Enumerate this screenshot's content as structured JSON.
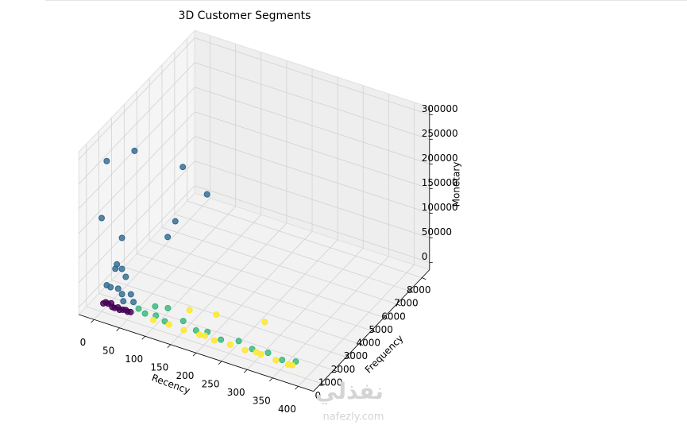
{
  "chart_data": {
    "type": "scatter3d",
    "title": "3D Customer Segments",
    "xlabel": "Recency",
    "ylabel": "Frequency",
    "zlabel": "Monetary",
    "xlim": [
      0,
      400
    ],
    "ylim": [
      0,
      8000
    ],
    "zlim": [
      0,
      300000
    ],
    "xticks": [
      0,
      50,
      100,
      150,
      200,
      250,
      300,
      350,
      400
    ],
    "yticks": [
      0,
      1000,
      2000,
      3000,
      4000,
      5000,
      6000,
      7000,
      8000
    ],
    "zticks": [
      0,
      50000,
      100000,
      150000,
      200000,
      250000,
      300000
    ],
    "grid": true,
    "series": [
      {
        "color": "#440154",
        "x": [
          2,
          10,
          20,
          30,
          40,
          50,
          15,
          25,
          5,
          45,
          35,
          55
        ],
        "y": [
          50,
          100,
          30,
          80,
          60,
          40,
          150,
          20,
          120,
          90,
          10,
          70
        ],
        "z": [
          1000,
          2000,
          500,
          1500,
          800,
          600,
          3000,
          400,
          2500,
          1200,
          300,
          900
        ]
      },
      {
        "color": "#31688e",
        "x": [
          20,
          0,
          0,
          20,
          15,
          80,
          120,
          90,
          80,
          10,
          20,
          30,
          5,
          40,
          25,
          15,
          35,
          50,
          12
        ],
        "y": [
          1800,
          400,
          0,
          800,
          600,
          3200,
          3500,
          2200,
          2000,
          300,
          500,
          400,
          200,
          700,
          900,
          1000,
          300,
          500,
          600
        ],
        "z": [
          270000,
          280000,
          175000,
          120000,
          70000,
          220000,
          170000,
          140000,
          110000,
          30000,
          25000,
          20000,
          35000,
          15000,
          40000,
          50000,
          10000,
          8000,
          60000
        ]
      },
      {
        "color": "#35b779",
        "x": [
          65,
          80,
          100,
          120,
          150,
          180,
          200,
          230,
          260,
          290,
          320,
          350,
          373,
          90,
          110
        ],
        "y": [
          300,
          200,
          250,
          150,
          400,
          200,
          300,
          150,
          350,
          200,
          250,
          150,
          300,
          600,
          800
        ],
        "z": [
          5000,
          3000,
          4000,
          2000,
          6000,
          2500,
          3500,
          2000,
          4000,
          2000,
          3000,
          1500,
          2000,
          10000,
          8000
        ]
      },
      {
        "color": "#fde725",
        "x": [
          100,
          130,
          160,
          190,
          220,
          250,
          280,
          310,
          340,
          365,
          372,
          200,
          300,
          290,
          200,
          150
        ],
        "y": [
          50,
          80,
          40,
          60,
          30,
          70,
          40,
          90,
          50,
          30,
          60,
          100,
          120,
          1200,
          1000,
          900
        ],
        "z": [
          500,
          800,
          600,
          700,
          400,
          900,
          500,
          1000,
          600,
          400,
          700,
          1200,
          1100,
          30000,
          20000,
          15000
        ]
      }
    ],
    "watermark": {
      "text": "نفذلي",
      "site": "nafezly.com"
    }
  }
}
